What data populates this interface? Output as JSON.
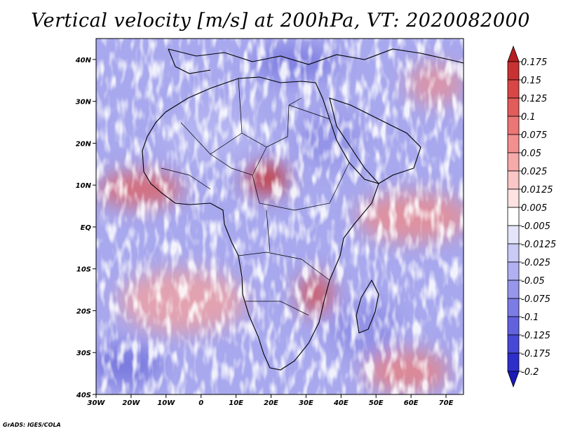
{
  "chart_data": {
    "type": "heatmap",
    "title": "Vertical velocity [m/s] at 200hPa, VT: 2020082000",
    "variable": "Vertical velocity",
    "units": "m/s",
    "level": "200hPa",
    "valid_time": "2020082000",
    "xlim": [
      -30,
      75
    ],
    "ylim": [
      -40,
      45
    ],
    "x_ticks": [
      {
        "value": -30,
        "label": "30W"
      },
      {
        "value": -20,
        "label": "20W"
      },
      {
        "value": -10,
        "label": "10W"
      },
      {
        "value": 0,
        "label": "0"
      },
      {
        "value": 10,
        "label": "10E"
      },
      {
        "value": 20,
        "label": "20E"
      },
      {
        "value": 30,
        "label": "30E"
      },
      {
        "value": 40,
        "label": "40E"
      },
      {
        "value": 50,
        "label": "50E"
      },
      {
        "value": 60,
        "label": "60E"
      },
      {
        "value": 70,
        "label": "70E"
      }
    ],
    "y_ticks": [
      {
        "value": 40,
        "label": "40N"
      },
      {
        "value": 30,
        "label": "30N"
      },
      {
        "value": 20,
        "label": "20N"
      },
      {
        "value": 10,
        "label": "10N"
      },
      {
        "value": 0,
        "label": "EQ"
      },
      {
        "value": -10,
        "label": "10S"
      },
      {
        "value": -20,
        "label": "20S"
      },
      {
        "value": -30,
        "label": "30S"
      },
      {
        "value": -40,
        "label": "40S"
      }
    ],
    "colorbar": {
      "levels": [
        "0.175",
        "0.15",
        "0.125",
        "0.1",
        "0.075",
        "0.05",
        "0.025",
        "0.0125",
        "0.005",
        "-0.005",
        "-0.0125",
        "-0.025",
        "-0.05",
        "-0.075",
        "-0.1",
        "-0.125",
        "-0.175",
        "-0.2"
      ],
      "colors": [
        "#b71e1e",
        "#c93232",
        "#d84646",
        "#e25c5c",
        "#ec7676",
        "#f29090",
        "#f6aaaa",
        "#fac6c6",
        "#fde2e2",
        "#ffffff",
        "#e4e4fb",
        "#cacaf7",
        "#b0b0f2",
        "#9696ec",
        "#7c7ce6",
        "#6262df",
        "#4848d6",
        "#2e2ecb",
        "#1a1ab8"
      ]
    }
  },
  "credit": "GrADS: IGES/COLA"
}
